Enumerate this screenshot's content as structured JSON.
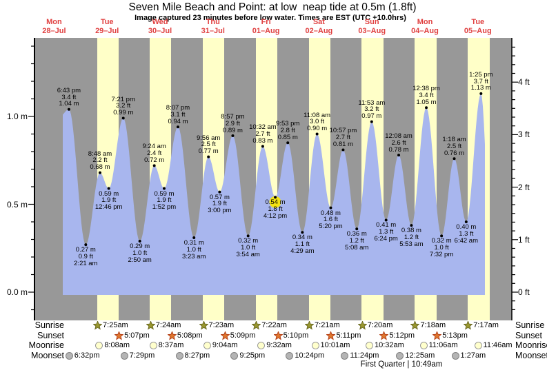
{
  "title": "Seven Mile Beach and Point: at low  neap tide at 0.5m (1.8ft)",
  "subtitle": "Image captured 23 minutes before low water. Times are EST (UTC +10.0hrs)",
  "days": [
    {
      "name": "Mon",
      "date": "28–Jul"
    },
    {
      "name": "Tue",
      "date": "29–Jul"
    },
    {
      "name": "Wed",
      "date": "30–Jul"
    },
    {
      "name": "Thu",
      "date": "31–Jul"
    },
    {
      "name": "Fri",
      "date": "01–Aug"
    },
    {
      "name": "Sat",
      "date": "02–Aug"
    },
    {
      "name": "Sun",
      "date": "03–Aug"
    },
    {
      "name": "Mon",
      "date": "04–Aug"
    },
    {
      "name": "Tue",
      "date": "05–Aug"
    }
  ],
  "axes": {
    "left_labels": [
      {
        "text": "0.0 m",
        "m": 0.0
      },
      {
        "text": "0.5 m",
        "m": 0.5
      },
      {
        "text": "1.0 m",
        "m": 1.0
      }
    ],
    "right_labels": [
      {
        "text": "0 ft",
        "ft": 0
      },
      {
        "text": "1 ft",
        "ft": 1
      },
      {
        "text": "2 ft",
        "ft": 2
      },
      {
        "text": "3 ft",
        "ft": 3
      },
      {
        "text": "4 ft",
        "ft": 4
      }
    ]
  },
  "chart_data": {
    "type": "area",
    "series_label": "tide height",
    "x_span": "Mon 28-Jul to Tue 05-Aug (9 day columns)",
    "ylim_m": [
      -0.18,
      1.45
    ],
    "units": [
      "m",
      "ft"
    ],
    "tides": [
      {
        "day": 0,
        "time": "6:43 pm",
        "ft": "3.4",
        "m": "1.04",
        "type": "high"
      },
      {
        "day": 1,
        "time": "2:21 am",
        "ft": "0.9",
        "m": "0.27",
        "type": "low"
      },
      {
        "day": 1,
        "time": "8:48 am",
        "ft": "2.2",
        "m": "0.68",
        "type": "high"
      },
      {
        "day": 1,
        "time": "12:46 pm",
        "ft": "1.9",
        "m": "0.59",
        "type": "low"
      },
      {
        "day": 1,
        "time": "7:21 pm",
        "ft": "3.2",
        "m": "0.99",
        "type": "high"
      },
      {
        "day": 2,
        "time": "2:50 am",
        "ft": "1.0",
        "m": "0.29",
        "type": "low"
      },
      {
        "day": 2,
        "time": "9:24 am",
        "ft": "2.4",
        "m": "0.72",
        "type": "high"
      },
      {
        "day": 2,
        "time": "1:52 pm",
        "ft": "1.9",
        "m": "0.59",
        "type": "low"
      },
      {
        "day": 2,
        "time": "8:07 pm",
        "ft": "3.1",
        "m": "0.94",
        "type": "high"
      },
      {
        "day": 3,
        "time": "3:23 am",
        "ft": "1.0",
        "m": "0.31",
        "type": "low"
      },
      {
        "day": 3,
        "time": "9:56 am",
        "ft": "2.5",
        "m": "0.77",
        "type": "high"
      },
      {
        "day": 3,
        "time": "3:00 pm",
        "ft": "1.9",
        "m": "0.57",
        "type": "low"
      },
      {
        "day": 3,
        "time": "8:57 pm",
        "ft": "2.9",
        "m": "0.89",
        "type": "high"
      },
      {
        "day": 4,
        "time": "3:54 am",
        "ft": "1.0",
        "m": "0.32",
        "type": "low"
      },
      {
        "day": 4,
        "time": "10:32 am",
        "ft": "2.7",
        "m": "0.83",
        "type": "high"
      },
      {
        "day": 4,
        "time": "4:12 pm",
        "ft": "1.8",
        "m": "0.54",
        "type": "low",
        "current": true
      },
      {
        "day": 4,
        "time": "9:53 pm",
        "ft": "2.8",
        "m": "0.85",
        "type": "high"
      },
      {
        "day": 5,
        "time": "4:29 am",
        "ft": "1.1",
        "m": "0.34",
        "type": "low"
      },
      {
        "day": 5,
        "time": "11:08 am",
        "ft": "3.0",
        "m": "0.90",
        "type": "high"
      },
      {
        "day": 5,
        "time": "5:20 pm",
        "ft": "1.6",
        "m": "0.48",
        "type": "low"
      },
      {
        "day": 5,
        "time": "10:57 pm",
        "ft": "2.7",
        "m": "0.81",
        "type": "high"
      },
      {
        "day": 6,
        "time": "5:08 am",
        "ft": "1.2",
        "m": "0.36",
        "type": "low"
      },
      {
        "day": 6,
        "time": "11:53 am",
        "ft": "3.2",
        "m": "0.97",
        "type": "high"
      },
      {
        "day": 6,
        "time": "6:24 pm",
        "ft": "1.3",
        "m": "0.41",
        "type": "low"
      },
      {
        "day": 7,
        "time": "12:08 am",
        "ft": "2.6",
        "m": "0.78",
        "type": "high"
      },
      {
        "day": 7,
        "time": "5:53 am",
        "ft": "1.2",
        "m": "0.38",
        "type": "low"
      },
      {
        "day": 7,
        "time": "12:38 pm",
        "ft": "3.4",
        "m": "1.05",
        "type": "high"
      },
      {
        "day": 7,
        "time": "7:32 pm",
        "ft": "1.0",
        "m": "0.32",
        "type": "low"
      },
      {
        "day": 8,
        "time": "1:18 am",
        "ft": "2.5",
        "m": "0.76",
        "type": "high"
      },
      {
        "day": 8,
        "time": "6:42 am",
        "ft": "1.3",
        "m": "0.40",
        "type": "low"
      },
      {
        "day": 8,
        "time": "1:25 pm",
        "ft": "3.7",
        "m": "1.13",
        "type": "high"
      }
    ]
  },
  "astro": {
    "row_labels": [
      "Sunrise",
      "Sunset",
      "Moonrise",
      "Moonset"
    ],
    "sunrise": [
      {
        "day": 1,
        "time": "7:25am"
      },
      {
        "day": 2,
        "time": "7:24am"
      },
      {
        "day": 3,
        "time": "7:23am"
      },
      {
        "day": 4,
        "time": "7:22am"
      },
      {
        "day": 5,
        "time": "7:21am"
      },
      {
        "day": 6,
        "time": "7:20am"
      },
      {
        "day": 7,
        "time": "7:18am"
      },
      {
        "day": 8,
        "time": "7:17am"
      }
    ],
    "sunset": [
      {
        "day": 1,
        "time": "5:07pm"
      },
      {
        "day": 2,
        "time": "5:08pm"
      },
      {
        "day": 3,
        "time": "5:09pm"
      },
      {
        "day": 4,
        "time": "5:10pm"
      },
      {
        "day": 5,
        "time": "5:11pm"
      },
      {
        "day": 6,
        "time": "5:12pm"
      },
      {
        "day": 7,
        "time": "5:13pm"
      }
    ],
    "moonrise": [
      {
        "day": 1,
        "time": "8:08am"
      },
      {
        "day": 2,
        "time": "8:37am"
      },
      {
        "day": 3,
        "time": "9:04am"
      },
      {
        "day": 4,
        "time": "9:32am"
      },
      {
        "day": 5,
        "time": "10:01am"
      },
      {
        "day": 6,
        "time": "10:32am"
      },
      {
        "day": 7,
        "time": "11:06am"
      },
      {
        "day": 8,
        "time": "11:46am"
      }
    ],
    "moonset": [
      {
        "day": 0,
        "time": "6:32pm"
      },
      {
        "day": 1,
        "time": "7:29pm"
      },
      {
        "day": 2,
        "time": "8:27pm"
      },
      {
        "day": 3,
        "time": "9:25pm"
      },
      {
        "day": 4,
        "time": "10:24pm"
      },
      {
        "day": 5,
        "time": "11:24pm"
      },
      {
        "day": 7,
        "time": "12:25am"
      },
      {
        "day": 8,
        "time": "1:27am"
      }
    ],
    "footer": "First Quarter | 10:49am"
  },
  "colors": {
    "night_band": "#989898",
    "day_band": "#ffffc8",
    "tide_fill": "#a8b6ee",
    "day_label_red": "#e04040",
    "current_marker": "#f2e214",
    "sunrise_star": "#9a982f",
    "sunrise_star_edge": "#6b6a20",
    "sunset_star": "#e0772e",
    "sunset_star_edge": "#b5441c",
    "moonrise_circle": "#ffffcc",
    "moonrise_circle_edge": "#999999",
    "moonset_circle": "#b4b4b4",
    "moonset_circle_edge": "#808080",
    "axis": "#000000"
  }
}
